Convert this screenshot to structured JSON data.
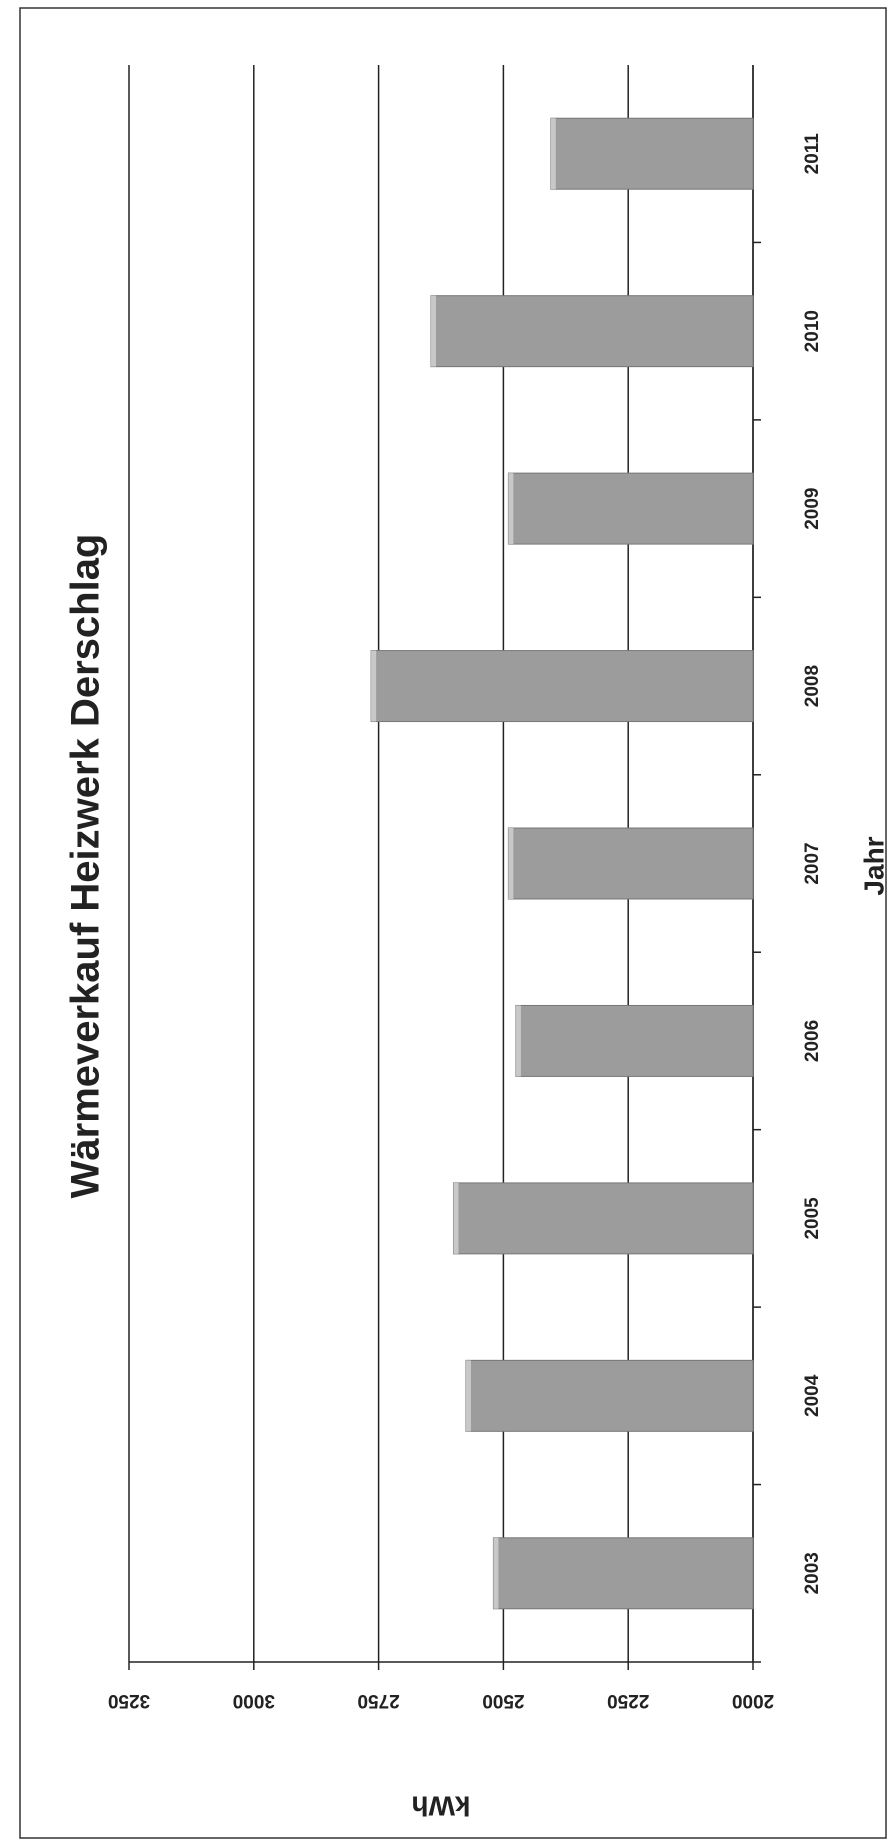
{
  "chart_data": {
    "type": "bar",
    "title": "Wärmeverkauf  Heizwerk Derschlag",
    "x_label": "Jahr",
    "y_label": "kWh",
    "categories": [
      "2003",
      "2004",
      "2005",
      "2006",
      "2007",
      "2008",
      "2009",
      "2010",
      "2011"
    ],
    "values": [
      2520,
      2575,
      2600,
      2475,
      2490,
      2765,
      2490,
      2645,
      2405
    ],
    "color": "#9c9c9c",
    "ylim": [
      2000,
      3250
    ],
    "yticks": [
      2000,
      2250,
      2500,
      2750,
      3000,
      3250
    ],
    "grid": true
  }
}
